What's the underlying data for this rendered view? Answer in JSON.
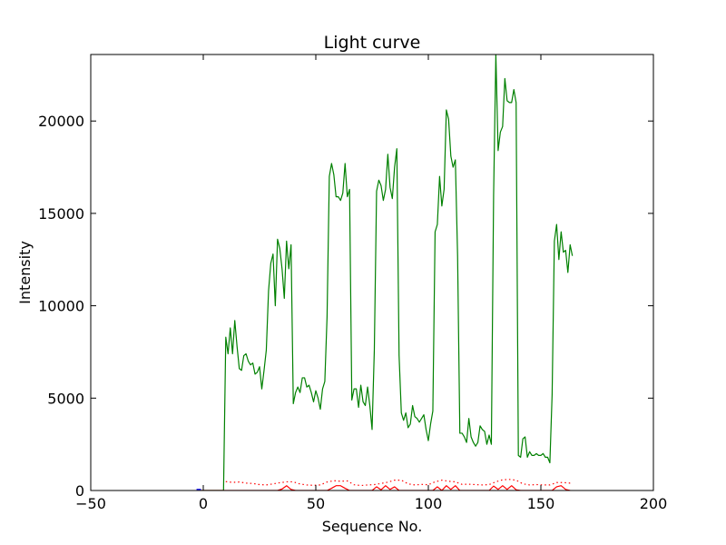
{
  "chart_data": {
    "type": "line",
    "title": "Light curve",
    "xlabel": "Sequence No.",
    "ylabel": "Intensity",
    "xlim": [
      -50,
      200
    ],
    "ylim": [
      0,
      23600
    ],
    "xticks": [
      -50,
      0,
      50,
      100,
      150,
      200
    ],
    "yticks": [
      0,
      5000,
      10000,
      15000,
      20000
    ],
    "xtick_labels": [
      "−50",
      "0",
      "50",
      "100",
      "150",
      "200"
    ],
    "ytick_labels": [
      "0",
      "5000",
      "10000",
      "15000",
      "20000"
    ],
    "grid": false,
    "series": [
      {
        "color": "#008000",
        "style": "solid",
        "x": [
          -3,
          0,
          3,
          6,
          9,
          10,
          11,
          12,
          13,
          14,
          15,
          16,
          17,
          18,
          19,
          20,
          21,
          22,
          23,
          24,
          25,
          26,
          27,
          28,
          29,
          30,
          31,
          32,
          33,
          34,
          35,
          36,
          37,
          38,
          39,
          40,
          41,
          42,
          43,
          44,
          45,
          46,
          47,
          48,
          49,
          50,
          51,
          52,
          53,
          54,
          55,
          56,
          57,
          58,
          59,
          60,
          61,
          62,
          63,
          64,
          65,
          66,
          67,
          68,
          69,
          70,
          71,
          72,
          73,
          74,
          75,
          76,
          77,
          78,
          79,
          80,
          81,
          82,
          83,
          84,
          85,
          86,
          87,
          88,
          89,
          90,
          91,
          92,
          93,
          94,
          95,
          96,
          97,
          98,
          99,
          100,
          101,
          102,
          103,
          104,
          105,
          106,
          107,
          108,
          109,
          110,
          111,
          112,
          113,
          114,
          115,
          116,
          117,
          118,
          119,
          120,
          121,
          122,
          123,
          124,
          125,
          126,
          127,
          128,
          129,
          130,
          131,
          132,
          133,
          134,
          135,
          136,
          137,
          138,
          139,
          140,
          141,
          142,
          143,
          144,
          145,
          146,
          147,
          148,
          149,
          150,
          151,
          152,
          153,
          154,
          155,
          156,
          157,
          158,
          159,
          160,
          161,
          162,
          163,
          164
        ],
        "y": [
          0,
          0,
          0,
          0,
          0,
          8300,
          7400,
          8800,
          7400,
          9200,
          7800,
          6600,
          6500,
          7300,
          7400,
          7000,
          6800,
          6900,
          6300,
          6400,
          6700,
          5500,
          6500,
          7600,
          10800,
          12300,
          12800,
          10000,
          13600,
          13100,
          12000,
          10400,
          13500,
          12000,
          13300,
          4700,
          5300,
          5600,
          5300,
          6100,
          6100,
          5600,
          5700,
          5300,
          4800,
          5400,
          5000,
          4400,
          5500,
          5900,
          9400,
          17000,
          17700,
          17100,
          15900,
          15900,
          15700,
          16100,
          17700,
          15900,
          16300,
          4900,
          5500,
          5500,
          4500,
          5700,
          4800,
          4600,
          5600,
          4600,
          3300,
          7600,
          16200,
          16800,
          16500,
          15700,
          16300,
          18200,
          16400,
          15800,
          17500,
          18500,
          7300,
          4200,
          3800,
          4200,
          3400,
          3600,
          4600,
          4000,
          3900,
          3700,
          3900,
          4100,
          3300,
          2700,
          3600,
          4300,
          14000,
          14400,
          17000,
          15400,
          16300,
          20600,
          20100,
          18100,
          17500,
          17900,
          12700,
          3100,
          3100,
          2900,
          2600,
          3900,
          2900,
          2600,
          2400,
          2600,
          3500,
          3300,
          3200,
          2500,
          3000,
          2500,
          16000,
          23600,
          18400,
          19400,
          19700,
          22300,
          21100,
          21000,
          21000,
          21700,
          21000,
          1900,
          1800,
          2800,
          2900,
          1800,
          2100,
          1900,
          1900,
          2000,
          1900,
          1900,
          2000,
          1800,
          1800,
          1500,
          5200,
          13500,
          14400,
          12500,
          14000,
          12900,
          13000,
          11800,
          13300,
          12700
        ]
      },
      {
        "color": "#ff0000",
        "style": "dotted",
        "x": [
          10,
          13,
          16,
          19,
          22,
          25,
          28,
          31,
          34,
          37,
          40,
          43,
          46,
          49,
          52,
          55,
          58,
          61,
          64,
          67,
          70,
          73,
          76,
          79,
          82,
          85,
          88,
          91,
          94,
          97,
          100,
          103,
          106,
          109,
          112,
          115,
          118,
          121,
          124,
          127,
          130,
          133,
          136,
          139,
          142,
          145,
          148,
          151,
          154,
          157,
          160,
          163,
          164
        ],
        "y": [
          480,
          440,
          460,
          400,
          380,
          320,
          300,
          360,
          420,
          470,
          470,
          350,
          300,
          280,
          300,
          460,
          530,
          500,
          520,
          310,
          270,
          300,
          320,
          380,
          450,
          560,
          560,
          360,
          300,
          330,
          310,
          470,
          560,
          500,
          470,
          330,
          340,
          320,
          300,
          320,
          470,
          580,
          600,
          560,
          360,
          300,
          320,
          300,
          300,
          430,
          430,
          400,
          420
        ]
      },
      {
        "color": "#ff0000",
        "style": "solid",
        "x": [
          -3,
          0,
          3,
          6,
          9,
          30,
          33,
          35,
          37,
          39,
          41,
          55,
          57,
          59,
          61,
          63,
          65,
          67,
          75,
          77,
          79,
          81,
          83,
          85,
          87,
          89,
          102,
          104,
          106,
          108,
          110,
          112,
          114,
          127,
          129,
          131,
          133,
          135,
          137,
          139,
          141,
          155,
          157,
          159,
          161,
          163
        ],
        "y": [
          0,
          0,
          0,
          0,
          0,
          0,
          0,
          80,
          260,
          60,
          0,
          0,
          120,
          260,
          260,
          120,
          0,
          0,
          0,
          200,
          40,
          260,
          60,
          200,
          0,
          0,
          0,
          200,
          0,
          260,
          60,
          260,
          0,
          0,
          240,
          60,
          260,
          60,
          260,
          40,
          0,
          0,
          200,
          260,
          60,
          0
        ]
      },
      {
        "color": "#0000ff",
        "style": "solid",
        "x": [
          -3,
          -2,
          -1
        ],
        "y": [
          60,
          60,
          60
        ]
      }
    ]
  }
}
